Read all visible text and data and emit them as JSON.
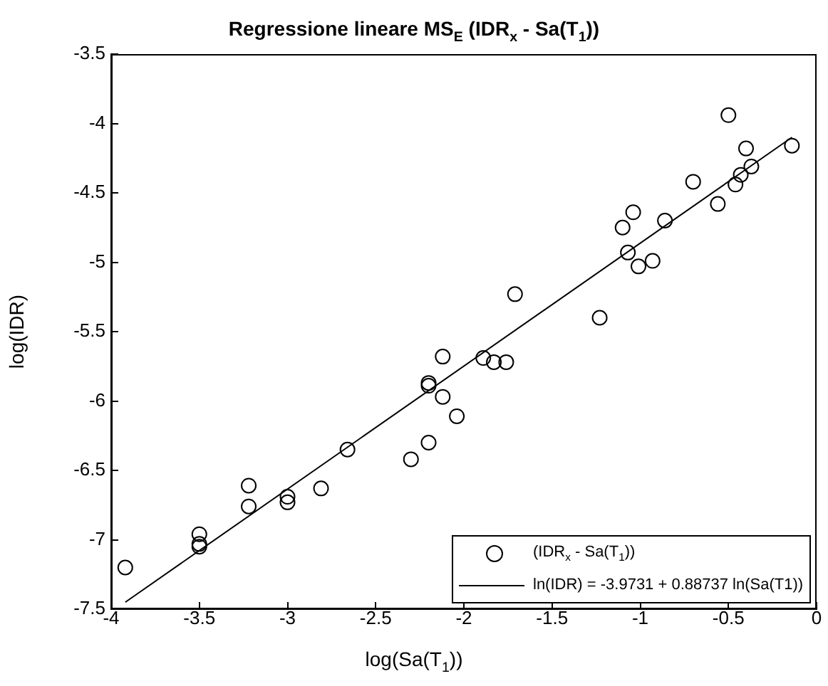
{
  "chart_data": {
    "type": "scatter",
    "title": "Regressione lineare MS$_{E}$ (IDR$_{x}$ - Sa(T$_{1}$))",
    "xlabel": "log(Sa(T$_{1}$))",
    "ylabel": "log(IDR)",
    "xlim": [
      -4,
      0
    ],
    "xticks": [
      -4,
      -3.5,
      -3,
      -2.5,
      -2,
      -1.5,
      -1,
      -0.5,
      0
    ],
    "ylim": [
      -7.5,
      -3.5
    ],
    "yticks": [
      -7.5,
      -7,
      -6.5,
      -6,
      -5.5,
      -5,
      -4.5,
      -4,
      -3.5
    ],
    "grid": false,
    "legend": "bottom right",
    "marker": "circle",
    "series": [
      {
        "name": "(IDR$_{x}$ - Sa(T$_{1}$))",
        "color": "#000000",
        "x": [
          -3.92,
          -3.5,
          -3.5,
          -3.5,
          -3.22,
          -3.22,
          -3.0,
          -3.0,
          -2.81,
          -2.66,
          -2.3,
          -2.2,
          -2.2,
          -2.2,
          -2.12,
          -2.12,
          -2.04,
          -1.89,
          -1.83,
          -1.76,
          -1.71,
          -1.23,
          -1.07,
          -1.01,
          -0.93,
          -1.1,
          -1.04,
          -0.86,
          -0.7,
          -0.56,
          -0.5,
          -0.46,
          -0.43,
          -0.4,
          -0.37,
          -0.14
        ],
        "values": [
          -7.2,
          -6.96,
          -7.03,
          -7.05,
          -6.61,
          -6.76,
          -6.69,
          -6.73,
          -6.63,
          -6.35,
          -6.42,
          -6.3,
          -5.87,
          -5.89,
          -5.68,
          -5.97,
          -6.11,
          -5.69,
          -5.72,
          -5.72,
          -5.23,
          -5.4,
          -4.93,
          -5.03,
          -4.99,
          -4.75,
          -4.64,
          -4.7,
          -4.42,
          -4.58,
          -3.94,
          -4.44,
          -4.37,
          -4.18,
          -4.31,
          -4.16
        ]
      },
      {
        "name": "ln(IDR) = -3.9731 + 0.88737 ln(Sa(T1))",
        "type": "line",
        "color": "#000000",
        "marker": "none",
        "line_style": "solid",
        "x": [
          -3.92,
          -0.14
        ],
        "values": [
          -7.45,
          -4.1
        ]
      }
    ]
  }
}
